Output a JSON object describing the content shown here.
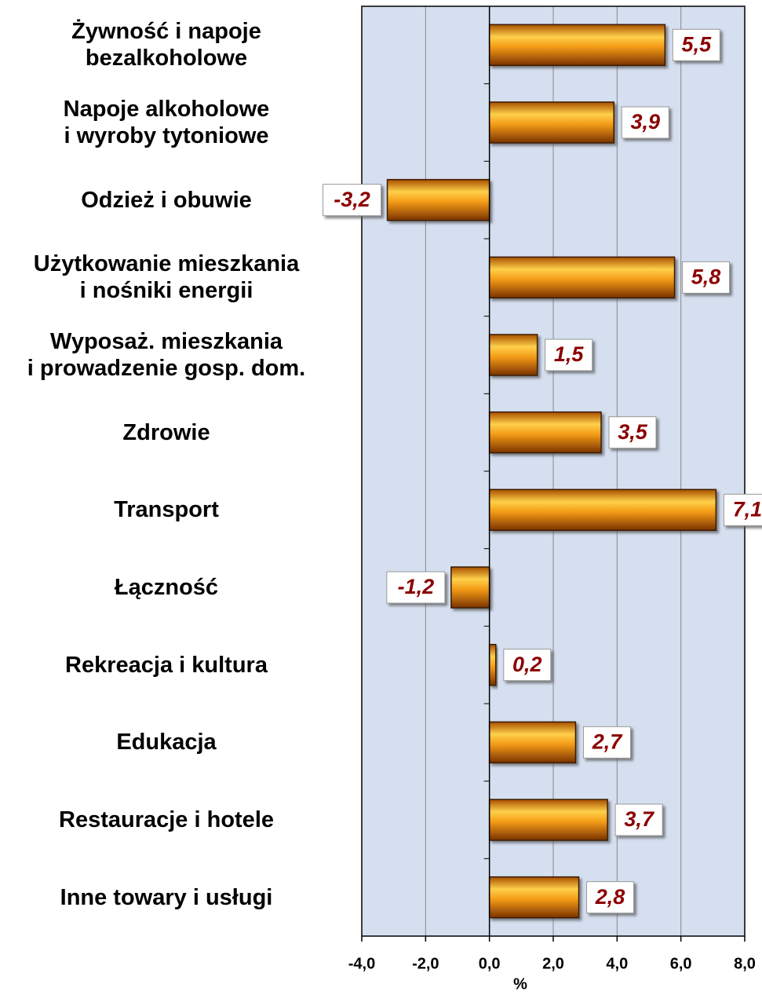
{
  "chart_data": {
    "type": "bar",
    "orientation": "horizontal",
    "categories": [
      "Żywność i napoje\nbezalkoholowe",
      "Napoje alkoholowe\ni wyroby tytoniowe",
      "Odzież i obuwie",
      "Użytkowanie mieszkania\ni nośniki energii",
      "Wyposaż. mieszkania\ni prowadzenie gosp. dom.",
      "Zdrowie",
      "Transport",
      "Łączność",
      "Rekreacja i kultura",
      "Edukacja",
      "Restauracje i hotele",
      "Inne towary i usługi"
    ],
    "values": [
      5.5,
      3.9,
      -3.2,
      5.8,
      1.5,
      3.5,
      7.1,
      -1.2,
      0.2,
      2.7,
      3.7,
      2.8
    ],
    "value_labels": [
      "5,5",
      "3,9",
      "-3,2",
      "5,8",
      "1,5",
      "3,5",
      "7,1",
      "-1,2",
      "0,2",
      "2,7",
      "3,7",
      "2,8"
    ],
    "color": "#e8900c",
    "x_label": "%",
    "xlim": [
      -4,
      8
    ],
    "xticks": [
      {
        "value": -4,
        "label": "-4,0"
      },
      {
        "value": -2,
        "label": "-2,0"
      },
      {
        "value": 0,
        "label": "0,0"
      },
      {
        "value": 2,
        "label": "2,0"
      },
      {
        "value": 4,
        "label": "4,0"
      },
      {
        "value": 6,
        "label": "6,0"
      },
      {
        "value": 8,
        "label": "8,0"
      }
    ],
    "grid": true
  }
}
